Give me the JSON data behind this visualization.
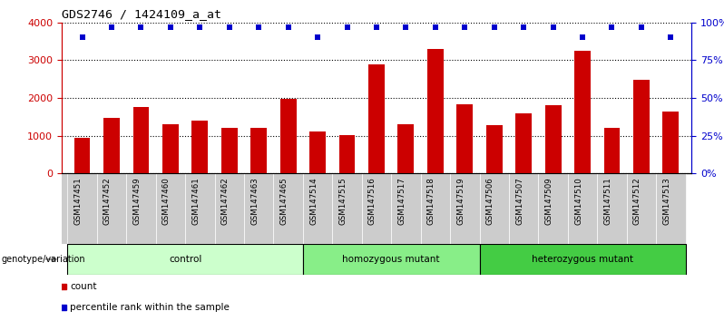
{
  "title": "GDS2746 / 1424109_a_at",
  "samples": [
    "GSM147451",
    "GSM147452",
    "GSM147459",
    "GSM147460",
    "GSM147461",
    "GSM147462",
    "GSM147463",
    "GSM147465",
    "GSM147514",
    "GSM147515",
    "GSM147516",
    "GSM147517",
    "GSM147518",
    "GSM147519",
    "GSM147506",
    "GSM147507",
    "GSM147509",
    "GSM147510",
    "GSM147511",
    "GSM147512",
    "GSM147513"
  ],
  "counts": [
    950,
    1470,
    1760,
    1310,
    1400,
    1210,
    1210,
    1980,
    1100,
    1010,
    2880,
    1300,
    3290,
    1840,
    1280,
    1580,
    1810,
    3260,
    1200,
    2480,
    1650
  ],
  "percentiles": [
    90,
    97,
    97,
    97,
    97,
    97,
    97,
    97,
    90,
    97,
    97,
    97,
    97,
    97,
    97,
    97,
    97,
    90,
    97,
    97,
    90
  ],
  "groups": [
    {
      "name": "control",
      "start": 0,
      "end": 8,
      "color": "#ccffcc"
    },
    {
      "name": "homozygous mutant",
      "start": 8,
      "end": 14,
      "color": "#88ee88"
    },
    {
      "name": "heterozygous mutant",
      "start": 14,
      "end": 21,
      "color": "#44cc44"
    }
  ],
  "bar_color": "#cc0000",
  "dot_color": "#0000cc",
  "ylim_left": [
    0,
    4000
  ],
  "ylim_right": [
    0,
    100
  ],
  "yticks_left": [
    0,
    1000,
    2000,
    3000,
    4000
  ],
  "yticks_right": [
    0,
    25,
    50,
    75,
    100
  ],
  "background_color": "#ffffff",
  "grid_color": "#000000",
  "xtick_bg_color": "#cccccc",
  "legend_count_label": "count",
  "legend_pct_label": "percentile rank within the sample",
  "genotype_label": "genotype/variation"
}
